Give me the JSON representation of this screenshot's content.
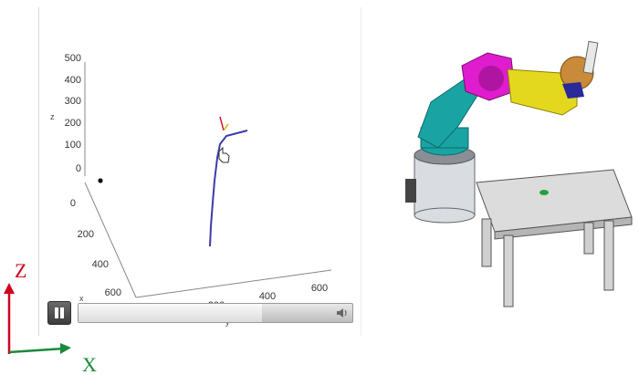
{
  "plot": {
    "z_ticks": [
      "500",
      "400",
      "300",
      "200",
      "100",
      "0"
    ],
    "x_ticks": [
      "0",
      "200",
      "400",
      "600"
    ],
    "y_ticks": [
      "200",
      "400",
      "600"
    ],
    "axis_labels": {
      "z": "z",
      "x": "x",
      "y": "y"
    }
  },
  "player": {
    "progress": 0.67
  },
  "legend": {
    "z_label": "Z",
    "x_label": "X",
    "z_color": "#d0021b",
    "x_color": "#1a8a3a"
  },
  "colors": {
    "trajectory": "#3c3ca8",
    "robot_base": "#d9dde2",
    "robot_shoulder": "#1aa3a3",
    "robot_elbow": "#e01ccf",
    "robot_forearm": "#e3d81e",
    "robot_gripper": "#c98a3a",
    "target_marker": "#22a33a"
  }
}
